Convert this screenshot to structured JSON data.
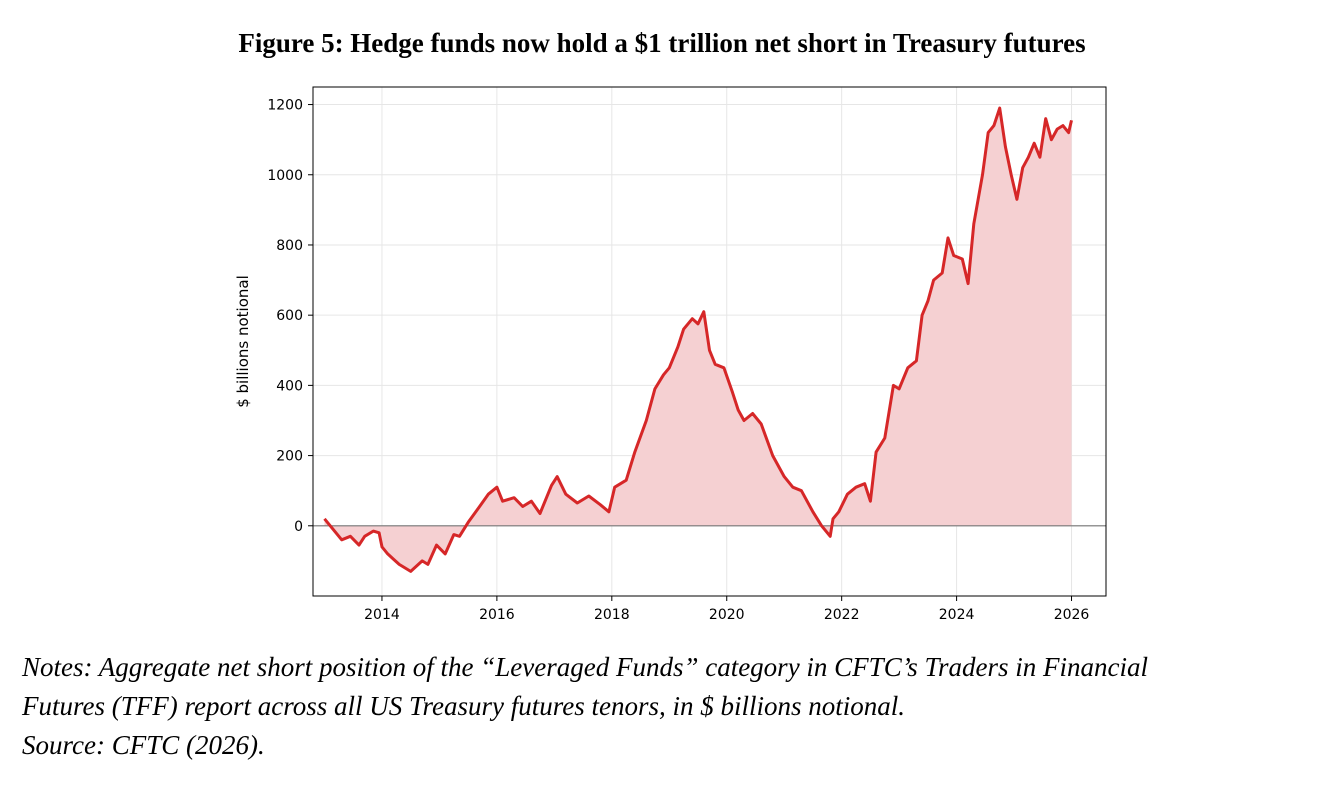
{
  "figure": {
    "title": "Figure 5: Hedge funds now hold a $1 trillion net short in Treasury futures",
    "notes_lines": [
      "Notes: Aggregate net short position of the “Leveraged Funds” category in CFTC’s Traders in Financial",
      "Futures (TFF) report across all US Treasury futures tenors, in $ billions notional.",
      "Source: CFTC (2026)."
    ]
  },
  "colors": {
    "line": "#d62728",
    "fill": "#f5d0d2",
    "grid": "#e6e6e6",
    "zero_line": "#777777"
  },
  "chart_data": {
    "type": "area",
    "title": "",
    "xlabel": "",
    "ylabel": "$ billions notional",
    "xlim": [
      2012.8,
      2026.6
    ],
    "ylim": [
      -200,
      1250
    ],
    "x_ticks": [
      2014,
      2016,
      2018,
      2020,
      2022,
      2024,
      2026
    ],
    "x_tick_labels": [
      "2014",
      "2016",
      "2018",
      "2020",
      "2022",
      "2024",
      "2026"
    ],
    "y_ticks": [
      0,
      200,
      400,
      600,
      800,
      1000,
      1200
    ],
    "y_tick_labels": [
      "0",
      "200",
      "400",
      "600",
      "800",
      "1000",
      "1200"
    ],
    "grid": true,
    "zero_line": true,
    "series": [
      {
        "x": [
          2013.0,
          2013.15,
          2013.3,
          2013.45,
          2013.6,
          2013.7,
          2013.85,
          2013.95,
          2014.0,
          2014.1,
          2014.2,
          2014.3,
          2014.5,
          2014.7,
          2014.8,
          2014.95,
          2015.1,
          2015.25,
          2015.35,
          2015.5,
          2015.7,
          2015.85,
          2016.0,
          2016.1,
          2016.3,
          2016.45,
          2016.6,
          2016.75,
          2016.95,
          2017.05,
          2017.2,
          2017.4,
          2017.6,
          2017.8,
          2017.95,
          2018.05,
          2018.25,
          2018.4,
          2018.6,
          2018.75,
          2018.9,
          2019.0,
          2019.15,
          2019.25,
          2019.4,
          2019.5,
          2019.6,
          2019.7,
          2019.8,
          2019.95,
          2020.1,
          2020.2,
          2020.3,
          2020.45,
          2020.6,
          2020.8,
          2021.0,
          2021.15,
          2021.3,
          2021.5,
          2021.65,
          2021.8,
          2021.85,
          2021.95,
          2022.1,
          2022.25,
          2022.4,
          2022.5,
          2022.6,
          2022.75,
          2022.9,
          2023.0,
          2023.15,
          2023.3,
          2023.4,
          2023.5,
          2023.6,
          2023.75,
          2023.85,
          2023.95,
          2024.1,
          2024.2,
          2024.3,
          2024.45,
          2024.55,
          2024.65,
          2024.75,
          2024.85,
          2024.95,
          2025.05,
          2025.15,
          2025.25,
          2025.35,
          2025.45,
          2025.55,
          2025.65,
          2025.75,
          2025.85,
          2025.95,
          2026.0
        ],
        "y": [
          20,
          -10,
          -40,
          -30,
          -55,
          -30,
          -15,
          -20,
          -60,
          -80,
          -95,
          -110,
          -130,
          -100,
          -110,
          -55,
          -80,
          -25,
          -30,
          10,
          55,
          90,
          110,
          70,
          80,
          55,
          70,
          35,
          115,
          140,
          90,
          65,
          85,
          60,
          40,
          110,
          130,
          210,
          300,
          390,
          430,
          450,
          510,
          560,
          590,
          575,
          610,
          500,
          460,
          450,
          380,
          330,
          300,
          320,
          290,
          200,
          140,
          110,
          100,
          40,
          0,
          -30,
          20,
          40,
          90,
          110,
          120,
          70,
          210,
          250,
          400,
          390,
          450,
          470,
          600,
          640,
          700,
          720,
          820,
          770,
          760,
          690,
          860,
          1000,
          1120,
          1140,
          1190,
          1080,
          1000,
          930,
          1020,
          1050,
          1090,
          1050,
          1160,
          1100,
          1130,
          1140,
          1120,
          1155
        ]
      }
    ]
  }
}
